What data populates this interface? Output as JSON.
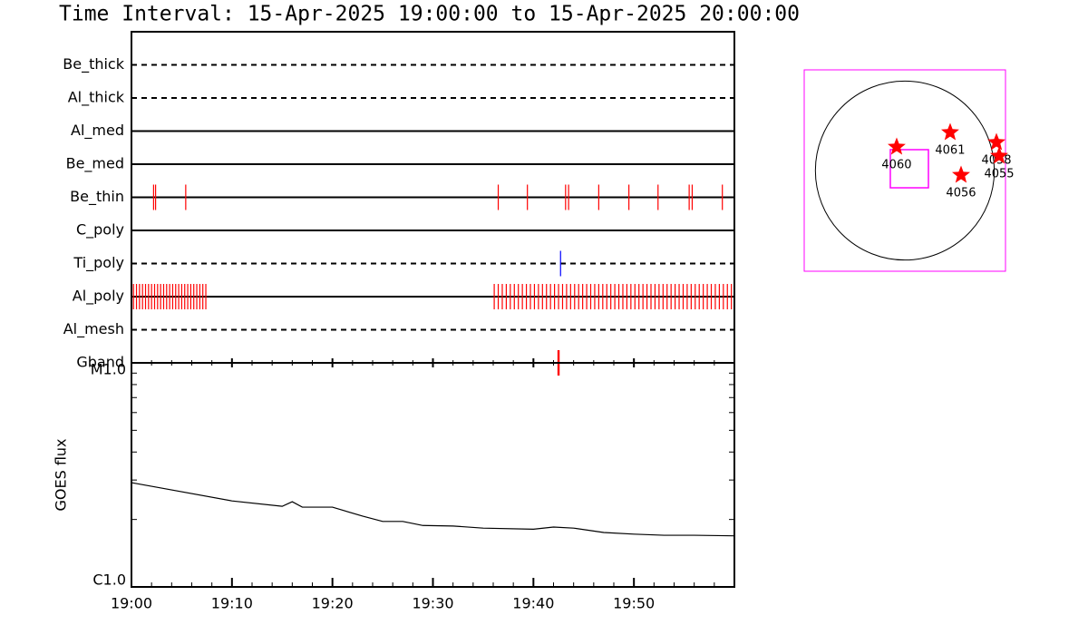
{
  "title": "Time Interval: 15-Apr-2025 19:00:00 to 15-Apr-2025 20:00:00",
  "chart_data": [
    {
      "type": "timeline",
      "categories": [
        "Be_thick",
        "Al_thick",
        "Al_med",
        "Be_med",
        "Be_thin",
        "C_poly",
        "Ti_poly",
        "Al_poly",
        "Al_mesh",
        "Gband"
      ],
      "dashed": [
        true,
        true,
        false,
        false,
        false,
        false,
        true,
        false,
        true,
        true
      ],
      "event_colors": [
        "#ff0000",
        "#ff0000",
        "#ff0000",
        "#ff0000",
        "#ff0000",
        "#ff0000",
        "#0000ff",
        "#ff0000",
        "#ff0000",
        "#ff0000"
      ],
      "event_widths": [
        1,
        1,
        1,
        1,
        1,
        1,
        1,
        1,
        1,
        2
      ],
      "events": [
        [],
        [],
        [],
        [],
        [
          2.2,
          2.4,
          5.4,
          36.5,
          39.4,
          43.2,
          43.5,
          46.5,
          49.5,
          52.4,
          55.5,
          55.8,
          58.8
        ],
        [],
        [
          42.7
        ],
        [
          0.2,
          0.5,
          0.8,
          1.1,
          1.4,
          1.7,
          2.0,
          2.3,
          2.6,
          2.9,
          3.2,
          3.5,
          3.8,
          4.1,
          4.4,
          4.7,
          5.0,
          5.3,
          5.6,
          5.9,
          6.2,
          6.5,
          6.8,
          7.1,
          7.4,
          36.1,
          36.5,
          36.9,
          37.3,
          37.7,
          38.1,
          38.5,
          38.9,
          39.3,
          39.7,
          40.1,
          40.5,
          40.9,
          41.3,
          41.7,
          42.1,
          42.5,
          42.9,
          43.3,
          43.7,
          44.1,
          44.5,
          44.9,
          45.3,
          45.7,
          46.1,
          46.5,
          46.9,
          47.3,
          47.7,
          48.1,
          48.5,
          48.9,
          49.3,
          49.7,
          50.1,
          50.5,
          50.9,
          51.3,
          51.7,
          52.1,
          52.5,
          52.9,
          53.3,
          53.7,
          54.1,
          54.5,
          54.9,
          55.3,
          55.7,
          56.1,
          56.5,
          56.9,
          57.3,
          57.7,
          58.1,
          58.5,
          58.9,
          59.3,
          59.7
        ],
        [],
        [
          42.5
        ]
      ],
      "xlim": [
        0,
        60
      ]
    },
    {
      "type": "line",
      "ylabel": "GOES flux",
      "log_y": true,
      "xlim": [
        0,
        60
      ],
      "xticks": [
        {
          "value": 0,
          "label": "19:00"
        },
        {
          "value": 10,
          "label": "19:10"
        },
        {
          "value": 20,
          "label": "19:20"
        },
        {
          "value": 30,
          "label": "19:30"
        },
        {
          "value": 40,
          "label": "19:40"
        },
        {
          "value": 50,
          "label": "19:50"
        }
      ],
      "xminorticks": [
        2,
        4,
        6,
        8,
        12,
        14,
        16,
        18,
        22,
        24,
        26,
        28,
        32,
        34,
        36,
        38,
        42,
        44,
        46,
        48,
        52,
        54,
        56,
        58
      ],
      "ylim": [
        1e-06,
        1e-05
      ],
      "yticks": [
        {
          "value": 1e-06,
          "label": "C1.0"
        },
        {
          "value": 1e-05,
          "label": "M1.0"
        }
      ],
      "yminorticks": [
        2e-06,
        3e-06,
        4e-06,
        5e-06,
        6e-06,
        7e-06,
        8e-06,
        9e-06
      ],
      "x": [
        0,
        3,
        10,
        15,
        16,
        17,
        20,
        23,
        25,
        27,
        29,
        32,
        35,
        40,
        42,
        44,
        47,
        50,
        53,
        56,
        60
      ],
      "series": [
        {
          "color": "#000000",
          "values": [
            2.92e-06,
            2.76e-06,
            2.42e-06,
            2.29e-06,
            2.4e-06,
            2.27e-06,
            2.27e-06,
            2.07e-06,
            1.96e-06,
            1.96e-06,
            1.88e-06,
            1.87e-06,
            1.83e-06,
            1.81e-06,
            1.85e-06,
            1.83e-06,
            1.75e-06,
            1.72e-06,
            1.7e-06,
            1.7e-06,
            1.69e-06
          ]
        }
      ]
    },
    {
      "type": "sunmap",
      "xlim": [
        -1080,
        1080
      ],
      "ylim": [
        -1080,
        1080
      ],
      "radius": 960,
      "fov": {
        "x": [
          -156,
          253
        ],
        "y": [
          -185,
          224
        ]
      },
      "frame_color": "#ff00ff",
      "star_color": "#ff0000",
      "labels": [
        "4060",
        "4061",
        "4058",
        "4055",
        "4056"
      ],
      "x": [
        -88,
        486,
        983,
        1012,
        603
      ],
      "y": [
        253,
        409,
        302,
        156,
        -49
      ]
    }
  ]
}
